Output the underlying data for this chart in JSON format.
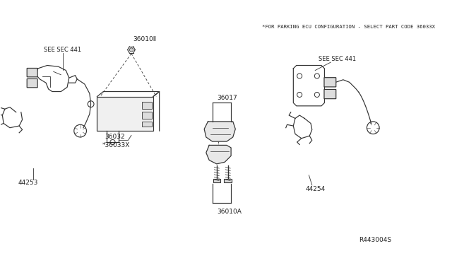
{
  "background_color": "#ffffff",
  "text_color": "#222222",
  "line_color": "#333333",
  "fig_width": 6.4,
  "fig_height": 3.72,
  "dpi": 100,
  "header_note": "*FOR PARKING ECU CONFIGURATION - SELECT PART CODE 36033X",
  "diagram_id": "R443004S",
  "label_44253": "44253",
  "label_36010II": "36010Ⅱ",
  "label_36032": "36032",
  "label_36033X": "*36033X",
  "label_36017": "36017",
  "label_36010A": "36010A",
  "label_44254": "44254",
  "label_see441_left": "SEE SEC 441",
  "label_see441_right": "SEE SEC 441"
}
